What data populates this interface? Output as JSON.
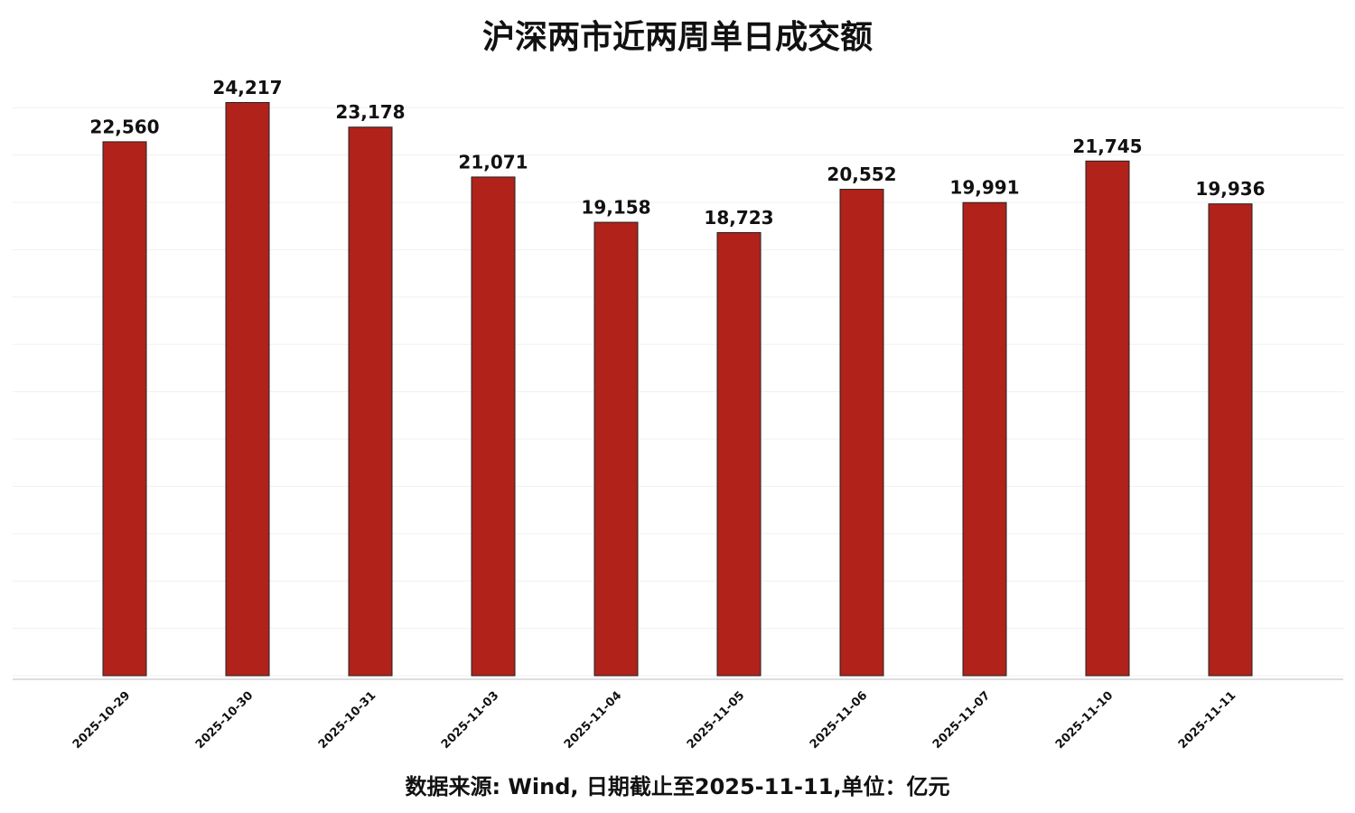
{
  "chart_data": {
    "type": "bar",
    "title": "沪深两市近两周单日成交额",
    "categories": [
      "2025-10-29",
      "2025-10-30",
      "2025-10-31",
      "2025-11-03",
      "2025-11-04",
      "2025-11-05",
      "2025-11-06",
      "2025-11-07",
      "2025-11-10",
      "2025-11-11"
    ],
    "values": [
      22560,
      24217,
      23178,
      21071,
      19158,
      18723,
      20552,
      19991,
      21745,
      19936
    ],
    "value_labels": [
      "22,560",
      "24,217",
      "23,178",
      "21,071",
      "19,158",
      "18,723",
      "20,552",
      "19,991",
      "21,745",
      "19,936"
    ],
    "color": "#b0221a",
    "ylim": [
      0,
      25000
    ],
    "yticks": [
      0,
      2000,
      4000,
      6000,
      8000,
      10000,
      12000,
      14000,
      16000,
      18000,
      20000,
      22000,
      24000
    ],
    "grid": true,
    "note": "数据来源: Wind, 日期截止至2025-11-11,单位：亿元"
  }
}
